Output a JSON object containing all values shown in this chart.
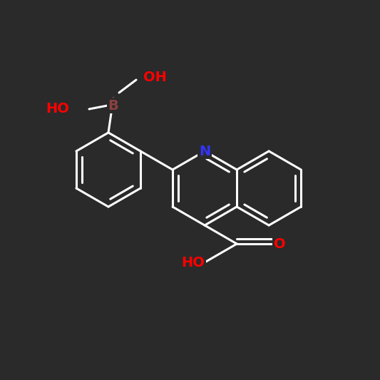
{
  "background_color": "#2a2a2a",
  "bond_color": "#ffffff",
  "bond_width": 2.2,
  "atom_labels": {
    "N": {
      "color": "#3333ff",
      "fontsize": 14,
      "fontweight": "bold"
    },
    "B": {
      "color": "#8b4040",
      "fontsize": 14,
      "fontweight": "bold"
    },
    "OH_top": {
      "color": "#ff0000",
      "fontsize": 14,
      "fontweight": "bold"
    },
    "HO_left": {
      "color": "#ff0000",
      "fontsize": 14,
      "fontweight": "bold"
    },
    "HO_carboxyl": {
      "color": "#ff0000",
      "fontsize": 14,
      "fontweight": "bold"
    },
    "O_carboxyl": {
      "color": "#ff0000",
      "fontsize": 14,
      "fontweight": "bold"
    }
  },
  "figsize": [
    5.33,
    5.33
  ],
  "dpi": 100
}
